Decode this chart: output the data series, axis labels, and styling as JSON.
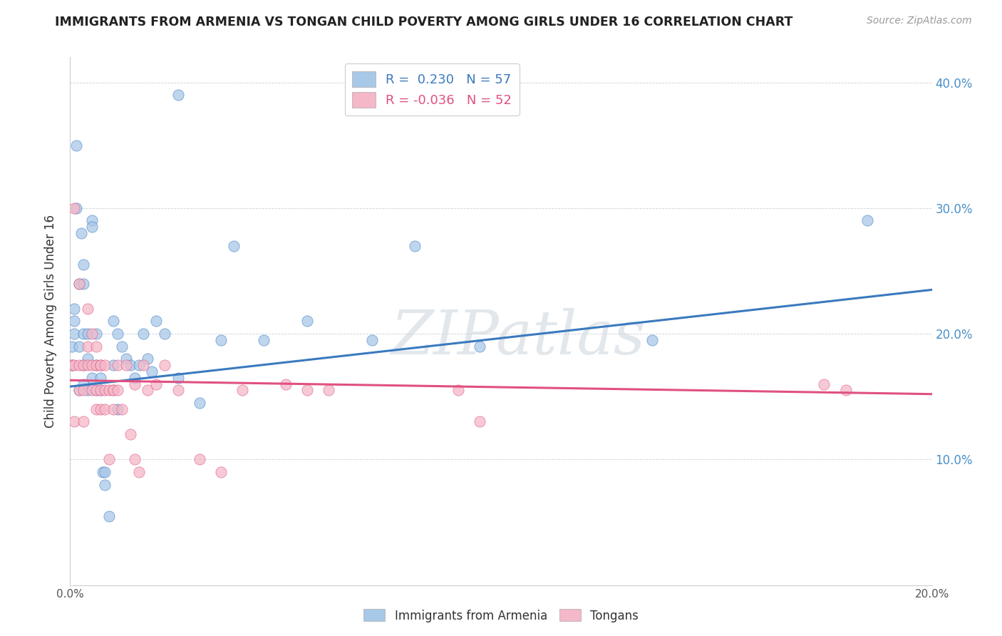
{
  "title": "IMMIGRANTS FROM ARMENIA VS TONGAN CHILD POVERTY AMONG GIRLS UNDER 16 CORRELATION CHART",
  "source": "Source: ZipAtlas.com",
  "ylabel": "Child Poverty Among Girls Under 16",
  "xlim": [
    0.0,
    0.2
  ],
  "ylim": [
    0.0,
    0.42
  ],
  "xticks": [
    0.0,
    0.02,
    0.04,
    0.06,
    0.08,
    0.1,
    0.12,
    0.14,
    0.16,
    0.18,
    0.2
  ],
  "yticks_right": [
    0.1,
    0.2,
    0.3,
    0.4
  ],
  "yticklabels_right": [
    "10.0%",
    "20.0%",
    "30.0%",
    "40.0%"
  ],
  "watermark": "ZIPatlas",
  "color_armenia": "#a8c8e8",
  "color_tonga": "#f4b8c8",
  "line_color_armenia": "#3a7abf",
  "line_color_tonga": "#e05080",
  "background_color": "#ffffff",
  "armenia_x": [
    0.0005,
    0.0005,
    0.001,
    0.001,
    0.001,
    0.0015,
    0.0015,
    0.002,
    0.002,
    0.002,
    0.0025,
    0.003,
    0.003,
    0.003,
    0.003,
    0.003,
    0.004,
    0.004,
    0.004,
    0.005,
    0.005,
    0.005,
    0.006,
    0.006,
    0.006,
    0.007,
    0.007,
    0.0075,
    0.008,
    0.008,
    0.009,
    0.01,
    0.01,
    0.011,
    0.011,
    0.012,
    0.013,
    0.014,
    0.015,
    0.016,
    0.017,
    0.018,
    0.019,
    0.02,
    0.022,
    0.025,
    0.025,
    0.03,
    0.035,
    0.038,
    0.045,
    0.055,
    0.07,
    0.08,
    0.095,
    0.135,
    0.185
  ],
  "armenia_y": [
    0.175,
    0.19,
    0.2,
    0.21,
    0.22,
    0.35,
    0.3,
    0.24,
    0.19,
    0.155,
    0.28,
    0.255,
    0.24,
    0.2,
    0.175,
    0.16,
    0.2,
    0.18,
    0.155,
    0.29,
    0.285,
    0.165,
    0.2,
    0.175,
    0.155,
    0.165,
    0.155,
    0.09,
    0.09,
    0.08,
    0.055,
    0.21,
    0.175,
    0.2,
    0.14,
    0.19,
    0.18,
    0.175,
    0.165,
    0.175,
    0.2,
    0.18,
    0.17,
    0.21,
    0.2,
    0.39,
    0.165,
    0.145,
    0.195,
    0.27,
    0.195,
    0.21,
    0.195,
    0.27,
    0.19,
    0.195,
    0.29
  ],
  "tonga_x": [
    0.0005,
    0.001,
    0.001,
    0.001,
    0.002,
    0.002,
    0.002,
    0.003,
    0.003,
    0.003,
    0.004,
    0.004,
    0.004,
    0.005,
    0.005,
    0.005,
    0.006,
    0.006,
    0.006,
    0.006,
    0.007,
    0.007,
    0.007,
    0.007,
    0.008,
    0.008,
    0.008,
    0.009,
    0.009,
    0.01,
    0.01,
    0.01,
    0.011,
    0.011,
    0.012,
    0.013,
    0.014,
    0.015,
    0.015,
    0.016,
    0.017,
    0.018,
    0.02,
    0.022,
    0.025,
    0.03,
    0.035,
    0.04,
    0.05,
    0.055,
    0.06,
    0.09,
    0.095,
    0.175,
    0.18
  ],
  "tonga_y": [
    0.175,
    0.3,
    0.175,
    0.13,
    0.24,
    0.175,
    0.155,
    0.175,
    0.155,
    0.13,
    0.22,
    0.19,
    0.175,
    0.2,
    0.175,
    0.155,
    0.19,
    0.175,
    0.155,
    0.14,
    0.175,
    0.155,
    0.175,
    0.14,
    0.175,
    0.155,
    0.14,
    0.155,
    0.1,
    0.155,
    0.155,
    0.14,
    0.175,
    0.155,
    0.14,
    0.175,
    0.12,
    0.16,
    0.1,
    0.09,
    0.175,
    0.155,
    0.16,
    0.175,
    0.155,
    0.1,
    0.09,
    0.155,
    0.16,
    0.155,
    0.155,
    0.155,
    0.13,
    0.16,
    0.155
  ],
  "line_armenia_x0": 0.0,
  "line_armenia_y0": 0.158,
  "line_armenia_x1": 0.2,
  "line_armenia_y1": 0.235,
  "line_tonga_x0": 0.0,
  "line_tonga_y0": 0.163,
  "line_tonga_x1": 0.2,
  "line_tonga_y1": 0.152
}
